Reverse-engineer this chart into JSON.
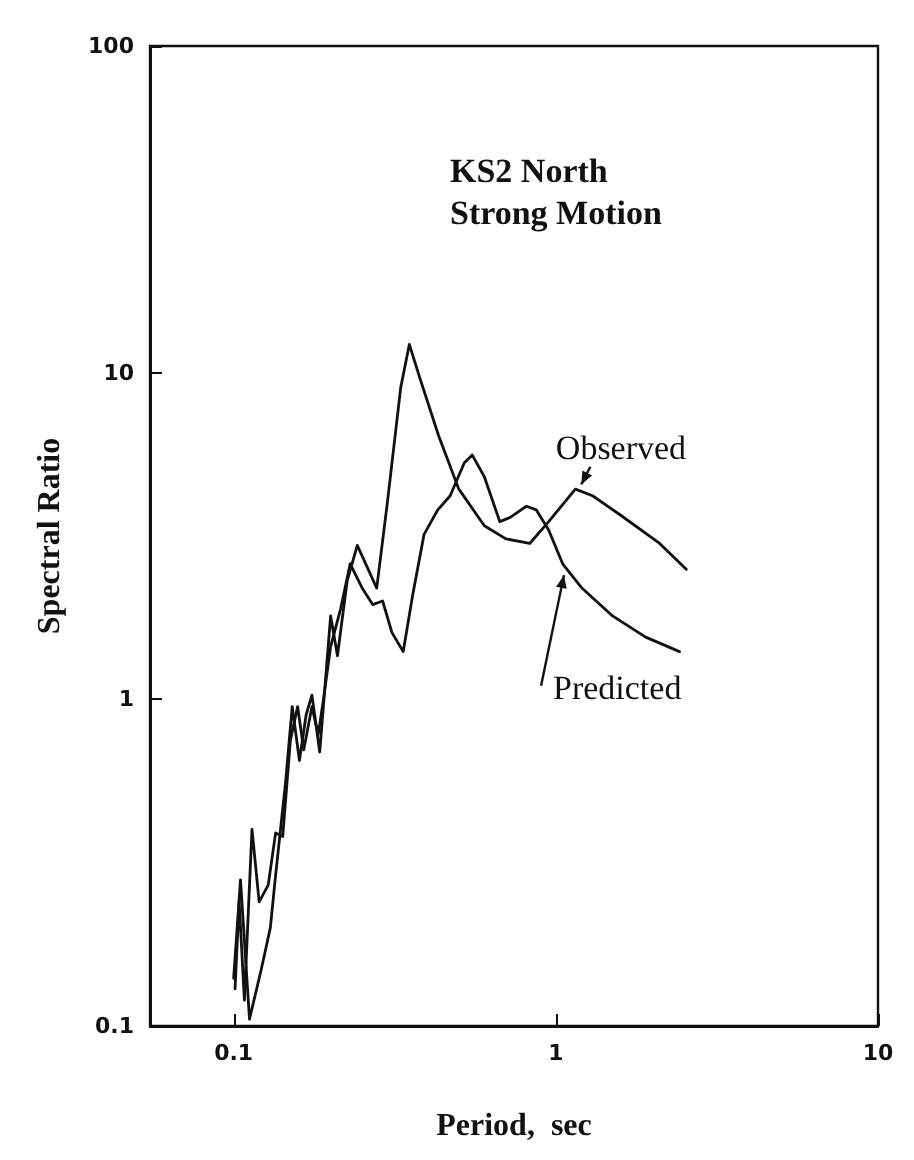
{
  "chart_data": {
    "type": "line",
    "title": "KS2 North\nStrong Motion",
    "xlabel": "Period,  sec",
    "ylabel": "Spectral Ratio",
    "log": "xy",
    "grid": false,
    "legend": false,
    "marker": "none",
    "line_style": "solid",
    "xlim": [
      0.055,
      10
    ],
    "xticks": [
      0.1,
      1,
      10
    ],
    "ylim": [
      0.1,
      100
    ],
    "yticks": [
      0.1,
      1,
      10,
      100
    ],
    "series": [
      {
        "name": "Observed",
        "color": "#111111",
        "x": [
          0.1,
          0.105,
          0.112,
          0.122,
          0.13,
          0.135,
          0.145,
          0.152,
          0.16,
          0.168,
          0.175,
          0.185,
          0.2,
          0.21,
          0.225,
          0.242,
          0.278,
          0.3,
          0.33,
          0.351,
          0.38,
          0.433,
          0.5,
          0.6,
          0.7,
          0.83,
          0.95,
          1.15,
          1.3,
          1.59,
          2.1,
          2.54
        ],
        "values": [
          0.14,
          0.28,
          0.105,
          0.15,
          0.2,
          0.29,
          0.56,
          0.95,
          0.65,
          0.9,
          1.03,
          0.69,
          1.8,
          1.36,
          2.3,
          2.96,
          2.19,
          4.0,
          9,
          12.2,
          9.5,
          6.4,
          4.4,
          3.4,
          3.1,
          3.0,
          3.5,
          4.4,
          4.2,
          3.66,
          3.0,
          2.5
        ]
      },
      {
        "name": "Predicted",
        "color": "#111111",
        "x": [
          0.101,
          0.104,
          0.108,
          0.114,
          0.12,
          0.128,
          0.135,
          0.142,
          0.15,
          0.158,
          0.165,
          0.175,
          0.183,
          0.19,
          0.2,
          0.215,
          0.23,
          0.25,
          0.27,
          0.29,
          0.31,
          0.336,
          0.36,
          0.39,
          0.43,
          0.47,
          0.52,
          0.55,
          0.6,
          0.67,
          0.72,
          0.81,
          0.87,
          0.95,
          1.05,
          1.2,
          1.5,
          1.9,
          2.42
        ],
        "values": [
          0.13,
          0.24,
          0.12,
          0.4,
          0.24,
          0.27,
          0.39,
          0.38,
          0.75,
          0.95,
          0.7,
          0.95,
          0.78,
          1.0,
          1.45,
          1.9,
          2.6,
          2.2,
          1.95,
          2.0,
          1.6,
          1.4,
          2.1,
          3.2,
          3.8,
          4.2,
          5.3,
          5.6,
          4.8,
          3.5,
          3.6,
          3.9,
          3.8,
          3.3,
          2.6,
          2.2,
          1.8,
          1.55,
          1.4
        ]
      }
    ]
  }
}
